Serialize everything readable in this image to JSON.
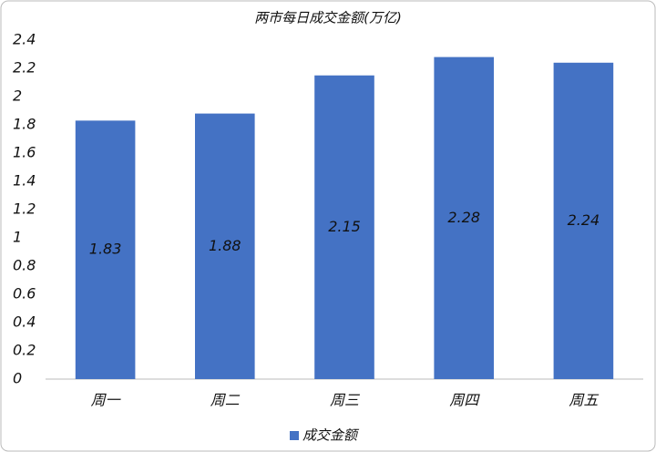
{
  "chart_data": {
    "type": "bar",
    "title": "两市每日成交金额(万亿)",
    "categories": [
      "周一",
      "周二",
      "周三",
      "周四",
      "周五"
    ],
    "series": [
      {
        "name": "成交金额",
        "color": "#4472c4",
        "values": [
          1.83,
          1.88,
          2.15,
          2.28,
          2.24
        ]
      }
    ],
    "ylim": [
      0,
      2.4
    ],
    "yticks": [
      0,
      0.2,
      0.4,
      0.6,
      0.8,
      1,
      1.2,
      1.4,
      1.6,
      1.8,
      2,
      2.2,
      2.4
    ],
    "grid": false,
    "legend": "bottom"
  }
}
